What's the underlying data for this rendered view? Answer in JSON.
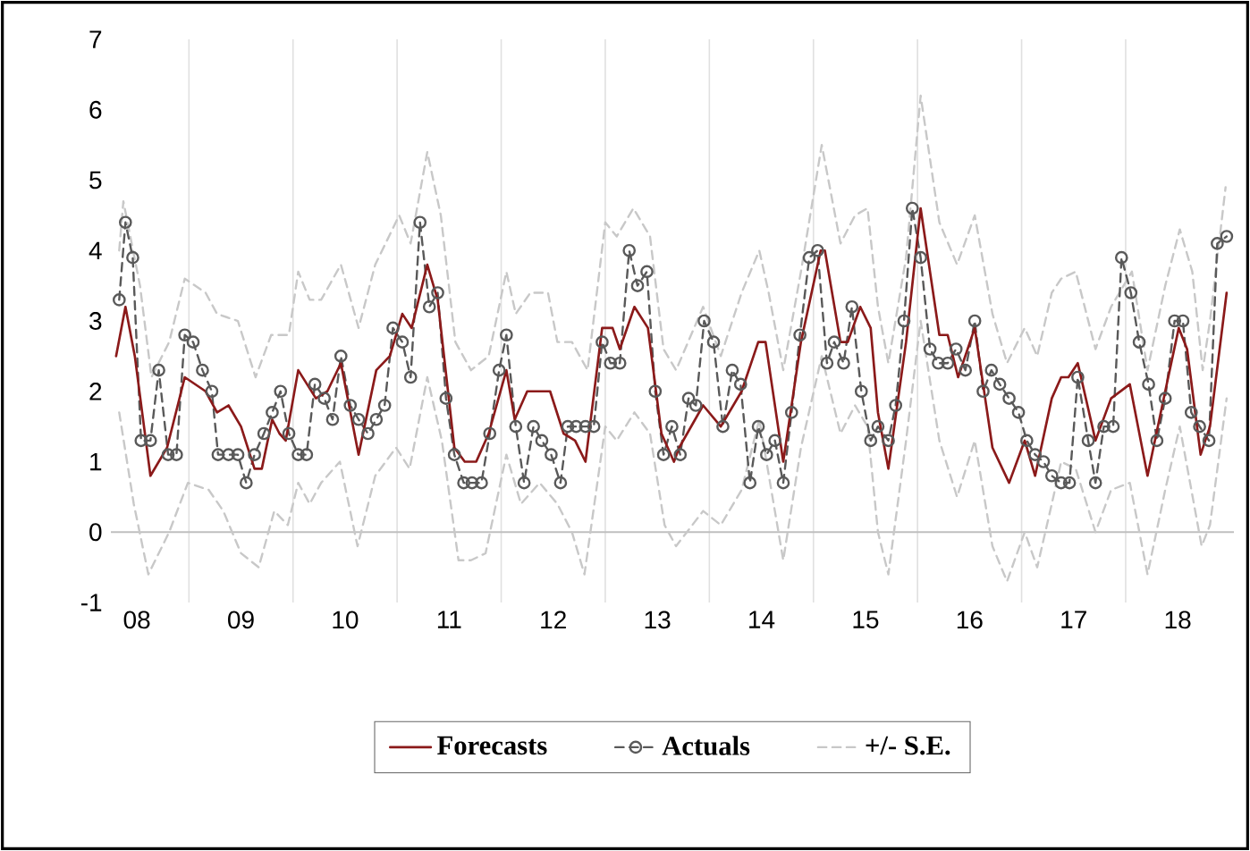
{
  "chart_data": {
    "type": "line",
    "xlim": [
      7.75,
      18.54
    ],
    "xticks": [
      {
        "value": 8,
        "label": "08"
      },
      {
        "value": 8.5,
        "label": null
      },
      {
        "value": 9,
        "label": "09"
      },
      {
        "value": 9.5,
        "label": null
      },
      {
        "value": 10,
        "label": "10"
      },
      {
        "value": 10.5,
        "label": null
      },
      {
        "value": 11,
        "label": "11"
      },
      {
        "value": 11.5,
        "label": null
      },
      {
        "value": 12,
        "label": "12"
      },
      {
        "value": 12.5,
        "label": null
      },
      {
        "value": 13,
        "label": "13"
      },
      {
        "value": 13.5,
        "label": null
      },
      {
        "value": 14,
        "label": "14"
      },
      {
        "value": 14.5,
        "label": null
      },
      {
        "value": 15,
        "label": "15"
      },
      {
        "value": 15.5,
        "label": null
      },
      {
        "value": 16,
        "label": "16"
      },
      {
        "value": 16.5,
        "label": null
      },
      {
        "value": 17,
        "label": "17"
      },
      {
        "value": 17.5,
        "label": null
      },
      {
        "value": 18,
        "label": "18"
      }
    ],
    "ylim": [
      -1,
      7
    ],
    "yticks": [
      -1,
      0,
      1,
      2,
      3,
      4,
      5,
      6,
      7
    ],
    "grid": "x",
    "legend": "bottom",
    "ref_lines": [
      {
        "axis": "y",
        "value": 0,
        "color": "#bfbfbf"
      }
    ],
    "series": [
      {
        "name": "Forecasts",
        "color": "#8b1a1a",
        "line_style": "solid",
        "marker": "none",
        "x": [
          7.8,
          7.89,
          7.98,
          8.13,
          8.29,
          8.46,
          8.66,
          8.77,
          8.88,
          9.0,
          9.13,
          9.2,
          9.3,
          9.37,
          9.43,
          9.55,
          9.72,
          9.83,
          9.96,
          10.13,
          10.3,
          10.43,
          10.55,
          10.64,
          10.79,
          10.89,
          11.05,
          11.15,
          11.26,
          11.38,
          11.55,
          11.63,
          11.75,
          11.87,
          11.97,
          12.1,
          12.21,
          12.31,
          12.47,
          12.57,
          12.64,
          12.78,
          12.91,
          13.04,
          13.16,
          13.21,
          13.44,
          13.61,
          13.81,
          13.97,
          14.04,
          14.21,
          14.38,
          14.57,
          14.61,
          14.76,
          14.83,
          14.95,
          15.05,
          15.12,
          15.22,
          15.39,
          15.53,
          15.71,
          15.79,
          15.89,
          16.05,
          16.22,
          16.38,
          16.53,
          16.63,
          16.79,
          16.88,
          16.95,
          17.04,
          17.21,
          17.36,
          17.54,
          17.71,
          17.88,
          18.01,
          18.09,
          18.22,
          18.31,
          18.47
        ],
        "values": [
          2.5,
          3.2,
          2.5,
          0.8,
          1.2,
          2.2,
          2.0,
          1.7,
          1.8,
          1.5,
          0.9,
          0.9,
          1.6,
          1.4,
          1.3,
          2.3,
          1.9,
          2.0,
          2.4,
          1.1,
          2.3,
          2.5,
          3.1,
          2.9,
          3.8,
          3.3,
          1.2,
          1.0,
          1.0,
          1.4,
          2.3,
          1.6,
          2.0,
          2.0,
          2.0,
          1.4,
          1.3,
          1.0,
          2.9,
          2.9,
          2.6,
          3.2,
          2.9,
          1.4,
          1.0,
          1.2,
          1.8,
          1.5,
          2.0,
          2.7,
          2.7,
          1.0,
          2.7,
          4.0,
          4.0,
          2.7,
          2.7,
          3.2,
          2.9,
          1.7,
          0.9,
          2.7,
          4.6,
          2.8,
          2.8,
          2.2,
          2.9,
          1.2,
          0.7,
          1.3,
          0.8,
          1.9,
          2.2,
          2.2,
          2.4,
          1.3,
          1.9,
          2.1,
          0.8,
          2.0,
          2.9,
          2.6,
          1.1,
          1.5,
          3.4
        ]
      },
      {
        "name": "Actuals",
        "color": "#595959",
        "line_style": "dashed",
        "marker": "circle",
        "x": [
          7.83,
          7.89,
          7.96,
          8.04,
          8.13,
          8.21,
          8.3,
          8.38,
          8.46,
          8.54,
          8.63,
          8.72,
          8.78,
          8.88,
          8.97,
          9.05,
          9.13,
          9.22,
          9.3,
          9.38,
          9.46,
          9.55,
          9.63,
          9.71,
          9.8,
          9.88,
          9.96,
          10.05,
          10.13,
          10.22,
          10.3,
          10.38,
          10.46,
          10.55,
          10.63,
          10.72,
          10.81,
          10.89,
          10.97,
          11.05,
          11.14,
          11.22,
          11.31,
          11.39,
          11.48,
          11.55,
          11.64,
          11.72,
          11.81,
          11.89,
          11.98,
          12.07,
          12.14,
          12.22,
          12.31,
          12.39,
          12.47,
          12.55,
          12.64,
          12.73,
          12.81,
          12.9,
          12.98,
          13.06,
          13.14,
          13.22,
          13.3,
          13.37,
          13.45,
          13.54,
          13.63,
          13.72,
          13.8,
          13.89,
          13.97,
          14.05,
          14.13,
          14.21,
          14.29,
          14.37,
          14.46,
          14.54,
          14.63,
          14.7,
          14.79,
          14.87,
          14.96,
          15.05,
          15.12,
          15.22,
          15.29,
          15.37,
          15.45,
          15.53,
          15.62,
          15.7,
          15.79,
          15.87,
          15.96,
          16.05,
          16.13,
          16.21,
          16.29,
          16.38,
          16.47,
          16.55,
          16.63,
          16.71,
          16.79,
          16.88,
          16.96,
          17.04,
          17.14,
          17.21,
          17.29,
          17.38,
          17.46,
          17.55,
          17.63,
          17.72,
          17.8,
          17.88,
          17.97,
          18.05,
          18.13,
          18.21,
          18.3,
          18.38,
          18.47
        ],
        "values": [
          3.3,
          4.4,
          3.9,
          1.3,
          1.3,
          2.3,
          1.1,
          1.1,
          2.8,
          2.7,
          2.3,
          2.0,
          1.1,
          1.1,
          1.1,
          0.7,
          1.1,
          1.4,
          1.7,
          2.0,
          1.4,
          1.1,
          1.1,
          2.1,
          1.9,
          1.6,
          2.5,
          1.8,
          1.6,
          1.4,
          1.6,
          1.8,
          2.9,
          2.7,
          2.2,
          4.4,
          3.2,
          3.4,
          1.9,
          1.1,
          0.7,
          0.7,
          0.7,
          1.4,
          2.3,
          2.8,
          1.5,
          0.7,
          1.5,
          1.3,
          1.1,
          0.7,
          1.5,
          1.5,
          1.5,
          1.5,
          2.7,
          2.4,
          2.4,
          4.0,
          3.5,
          3.7,
          2.0,
          1.1,
          1.5,
          1.1,
          1.9,
          1.8,
          3.0,
          2.7,
          1.5,
          2.3,
          2.1,
          0.7,
          1.5,
          1.1,
          1.3,
          0.7,
          1.7,
          2.8,
          3.9,
          4.0,
          2.4,
          2.7,
          2.4,
          3.2,
          2.0,
          1.3,
          1.5,
          1.3,
          1.8,
          3.0,
          4.6,
          3.9,
          2.6,
          2.4,
          2.4,
          2.6,
          2.3,
          3.0,
          2.0,
          2.3,
          2.1,
          1.9,
          1.7,
          1.3,
          1.1,
          1.0,
          0.8,
          0.7,
          0.7,
          2.2,
          1.3,
          0.7,
          1.5,
          1.5,
          3.9,
          3.4,
          2.7,
          2.1,
          1.3,
          1.9,
          3.0,
          3.0,
          1.7,
          1.5,
          1.3,
          4.1,
          4.2
        ]
      },
      {
        "name": "+/- S.E.",
        "color": "#c8c8c8",
        "line_style": "dashed",
        "marker": "none",
        "x": [
          7.83,
          7.87,
          8.03,
          8.14,
          8.31,
          8.46,
          8.66,
          8.77,
          8.97,
          9.14,
          9.29,
          9.46,
          9.55,
          9.66,
          9.77,
          9.96,
          10.13,
          10.29,
          10.52,
          10.63,
          10.79,
          10.92,
          11.06,
          11.21,
          11.38,
          11.55,
          11.64,
          11.78,
          11.95,
          12.04,
          12.18,
          12.33,
          12.5,
          12.61,
          12.77,
          12.93,
          13.06,
          13.18,
          13.44,
          13.61,
          13.81,
          13.98,
          14.07,
          14.21,
          14.38,
          14.58,
          14.76,
          14.9,
          15.02,
          15.12,
          15.22,
          15.39,
          15.53,
          15.71,
          15.88,
          16.05,
          16.22,
          16.36,
          16.53,
          16.65,
          16.79,
          16.88,
          17.02,
          17.21,
          17.36,
          17.56,
          17.71,
          17.88,
          18.02,
          18.14,
          18.24,
          18.31,
          18.46
        ],
        "values": [
          4.0,
          4.7,
          3.5,
          2.2,
          2.7,
          3.6,
          3.4,
          3.1,
          3.0,
          2.2,
          2.8,
          2.8,
          3.7,
          3.3,
          3.3,
          3.8,
          2.9,
          3.8,
          4.5,
          4.1,
          5.4,
          4.5,
          2.7,
          2.3,
          2.5,
          3.7,
          3.1,
          3.4,
          3.4,
          2.7,
          2.7,
          2.3,
          4.4,
          4.2,
          4.6,
          4.2,
          2.6,
          2.3,
          3.2,
          2.5,
          3.4,
          4.0,
          3.4,
          2.3,
          3.7,
          5.5,
          4.1,
          4.5,
          4.6,
          3.2,
          2.4,
          3.9,
          6.2,
          4.4,
          3.8,
          4.5,
          3.1,
          2.4,
          2.9,
          2.5,
          3.4,
          3.6,
          3.7,
          2.6,
          3.2,
          3.7,
          2.3,
          3.5,
          4.3,
          3.7,
          2.3,
          3.0,
          4.9
        ]
      },
      {
        "color": "#c8c8c8",
        "line_style": "dashed",
        "marker": "none",
        "x": [
          7.83,
          7.97,
          8.11,
          8.31,
          8.49,
          8.69,
          8.83,
          9.0,
          9.17,
          9.32,
          9.45,
          9.55,
          9.66,
          9.77,
          9.95,
          10.12,
          10.29,
          10.49,
          10.62,
          10.79,
          10.93,
          11.09,
          11.21,
          11.35,
          11.55,
          11.69,
          11.87,
          12.04,
          12.18,
          12.3,
          12.5,
          12.61,
          12.78,
          12.93,
          13.07,
          13.18,
          13.44,
          13.61,
          13.81,
          13.98,
          14.21,
          14.38,
          14.58,
          14.76,
          14.9,
          15.02,
          15.12,
          15.22,
          15.39,
          15.53,
          15.71,
          15.88,
          16.05,
          16.22,
          16.36,
          16.53,
          16.65,
          16.79,
          16.88,
          17.02,
          17.21,
          17.36,
          17.54,
          17.71,
          17.88,
          18.02,
          18.23,
          18.31,
          18.47
        ],
        "values": [
          1.7,
          0.4,
          -0.6,
          0.0,
          0.7,
          0.6,
          0.3,
          -0.3,
          -0.5,
          0.3,
          0.1,
          0.7,
          0.4,
          0.7,
          1.0,
          -0.2,
          0.8,
          1.2,
          0.9,
          2.2,
          1.3,
          -0.4,
          -0.4,
          -0.3,
          1.1,
          0.4,
          0.7,
          0.4,
          0.0,
          -0.6,
          1.5,
          1.3,
          1.7,
          1.4,
          0.1,
          -0.2,
          0.3,
          0.1,
          0.6,
          1.6,
          -0.4,
          1.2,
          2.5,
          1.4,
          1.8,
          1.5,
          0.0,
          -0.6,
          1.3,
          3.0,
          1.3,
          0.5,
          1.3,
          -0.2,
          -0.7,
          0.0,
          -0.5,
          0.4,
          1.0,
          0.9,
          0.0,
          0.6,
          0.7,
          -0.6,
          0.6,
          1.5,
          -0.2,
          0.1,
          1.9
        ]
      }
    ]
  }
}
